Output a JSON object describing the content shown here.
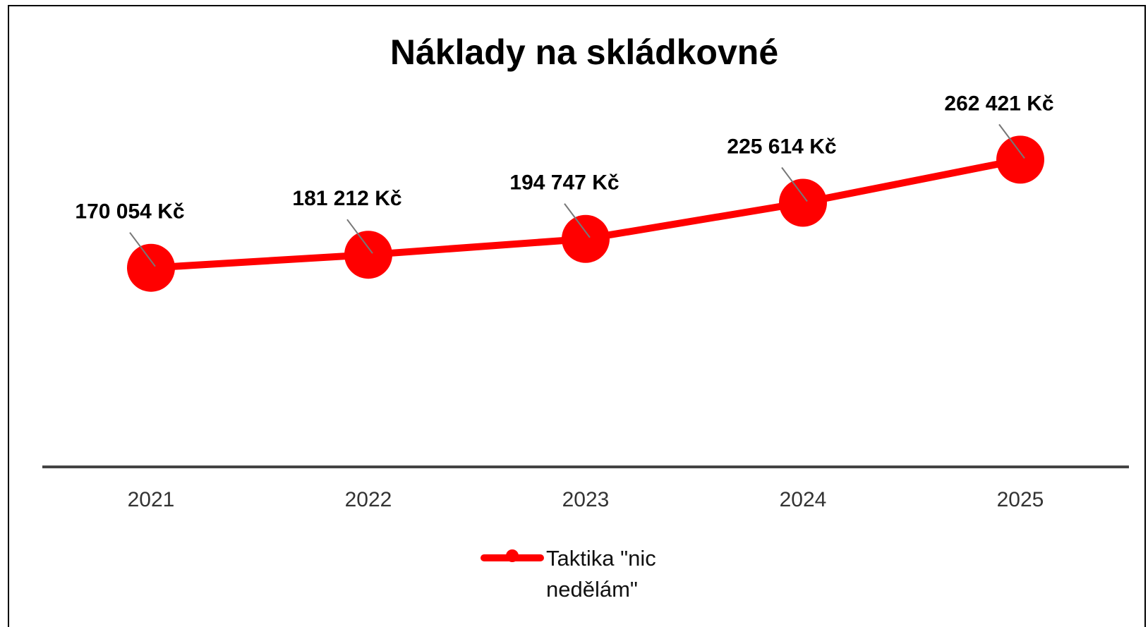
{
  "chart_data": {
    "type": "line",
    "title": "Náklady na skládkovné",
    "categories": [
      "2021",
      "2022",
      "2023",
      "2024",
      "2025"
    ],
    "series": [
      {
        "name": "Taktika \"nic nedělám\"",
        "color": "#ff0000",
        "values": [
          170054,
          181212,
          194747,
          225614,
          262421
        ],
        "value_labels": [
          "170 054 Kč",
          "181 212 Kč",
          "194 747 Kč",
          "225 614 Kč",
          "262 421 Kč"
        ]
      }
    ],
    "ylim": [
      0,
      300000
    ],
    "legend": "bottom"
  }
}
